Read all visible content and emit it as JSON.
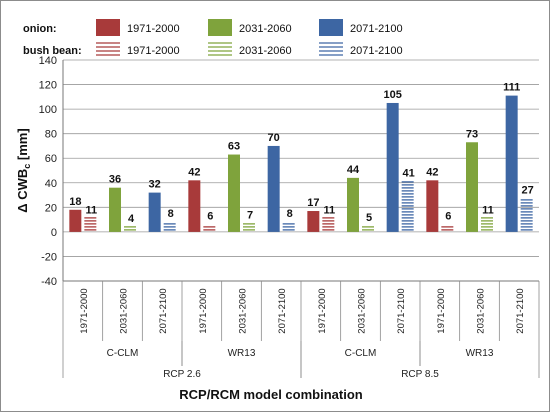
{
  "chart_data": {
    "type": "bar",
    "ylabel": "Δ CWB",
    "ylabel_subscript": "c",
    "ylabel_unit": "[mm]",
    "xlabel": "RCP/RCM model combination",
    "ylim": [
      -40,
      140
    ],
    "yticks": [
      -40,
      -20,
      0,
      20,
      40,
      60,
      80,
      100,
      120,
      140
    ],
    "grid": true,
    "categories": [
      "1971-2000",
      "2031-2060",
      "2071-2100",
      "1971-2000",
      "2031-2060",
      "2071-2100",
      "1971-2000",
      "2031-2060",
      "2071-2100",
      "1971-2000",
      "2031-2060",
      "2071-2100"
    ],
    "model_groups": [
      {
        "label": "C-CLM",
        "start": 0,
        "end": 2
      },
      {
        "label": "WR13",
        "start": 3,
        "end": 5
      },
      {
        "label": "C-CLM",
        "start": 6,
        "end": 8
      },
      {
        "label": "WR13",
        "start": 9,
        "end": 11
      }
    ],
    "scenario_groups": [
      {
        "label": "RCP 2.6",
        "start": 0,
        "end": 5
      },
      {
        "label": "RCP 8.5",
        "start": 6,
        "end": 11
      }
    ],
    "series": [
      {
        "name": "onion",
        "values": [
          18,
          36,
          32,
          42,
          63,
          70,
          17,
          44,
          105,
          42,
          73,
          111
        ]
      },
      {
        "name": "bush bean",
        "values": [
          11,
          4,
          8,
          6,
          7,
          8,
          11,
          5,
          41,
          6,
          11,
          27
        ]
      }
    ],
    "period_colors": {
      "1971-2000": "#a83a3a",
      "2031-2060": "#7fa33c",
      "2071-2100": "#3d66a3"
    },
    "legend": {
      "placement": "top",
      "rows": [
        {
          "label": "onion:",
          "style": "solid",
          "entries": [
            "1971-2000",
            "2031-2060",
            "2071-2100"
          ]
        },
        {
          "label": "bush bean:",
          "style": "hatched",
          "entries": [
            "1971-2000",
            "2031-2060",
            "2071-2100"
          ]
        }
      ]
    }
  }
}
